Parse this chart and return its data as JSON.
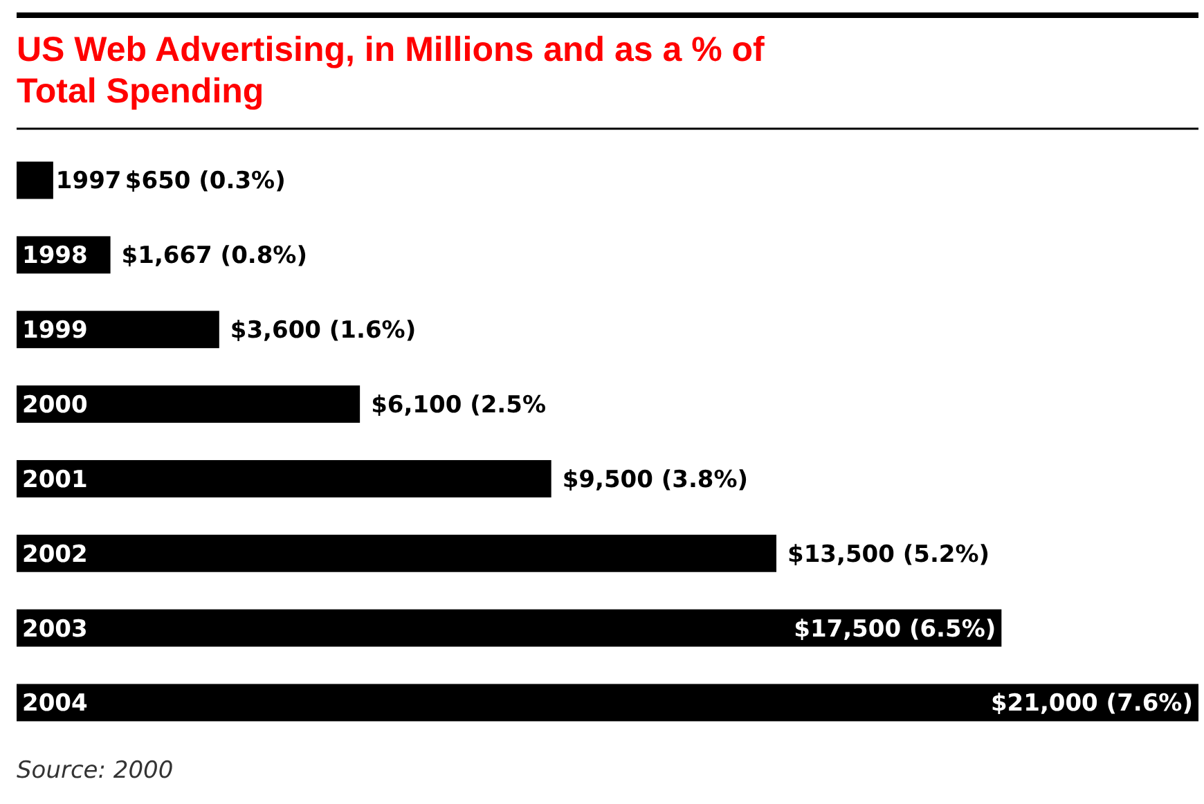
{
  "chart_data": {
    "type": "bar",
    "orientation": "horizontal",
    "title": "US Web Advertising, in Millions and as a % of Total Spending",
    "categories": [
      "1997",
      "1998",
      "1999",
      "2000",
      "2001",
      "2002",
      "2003",
      "2004"
    ],
    "values": [
      650,
      1667,
      3600,
      6100,
      9500,
      13500,
      17500,
      21000
    ],
    "value_labels": [
      "$650 (0.3%)",
      "$1,667 (0.8%)",
      "$3,600 (1.6%)",
      "$6,100 (2.5%",
      "$9,500 (3.8%)",
      "$13,500 (5.2%)",
      "$17,500 (6.5%)",
      "$21,000 (7.6%)"
    ],
    "color": "#000000",
    "annotations": [
      "Source: 2000"
    ]
  }
}
